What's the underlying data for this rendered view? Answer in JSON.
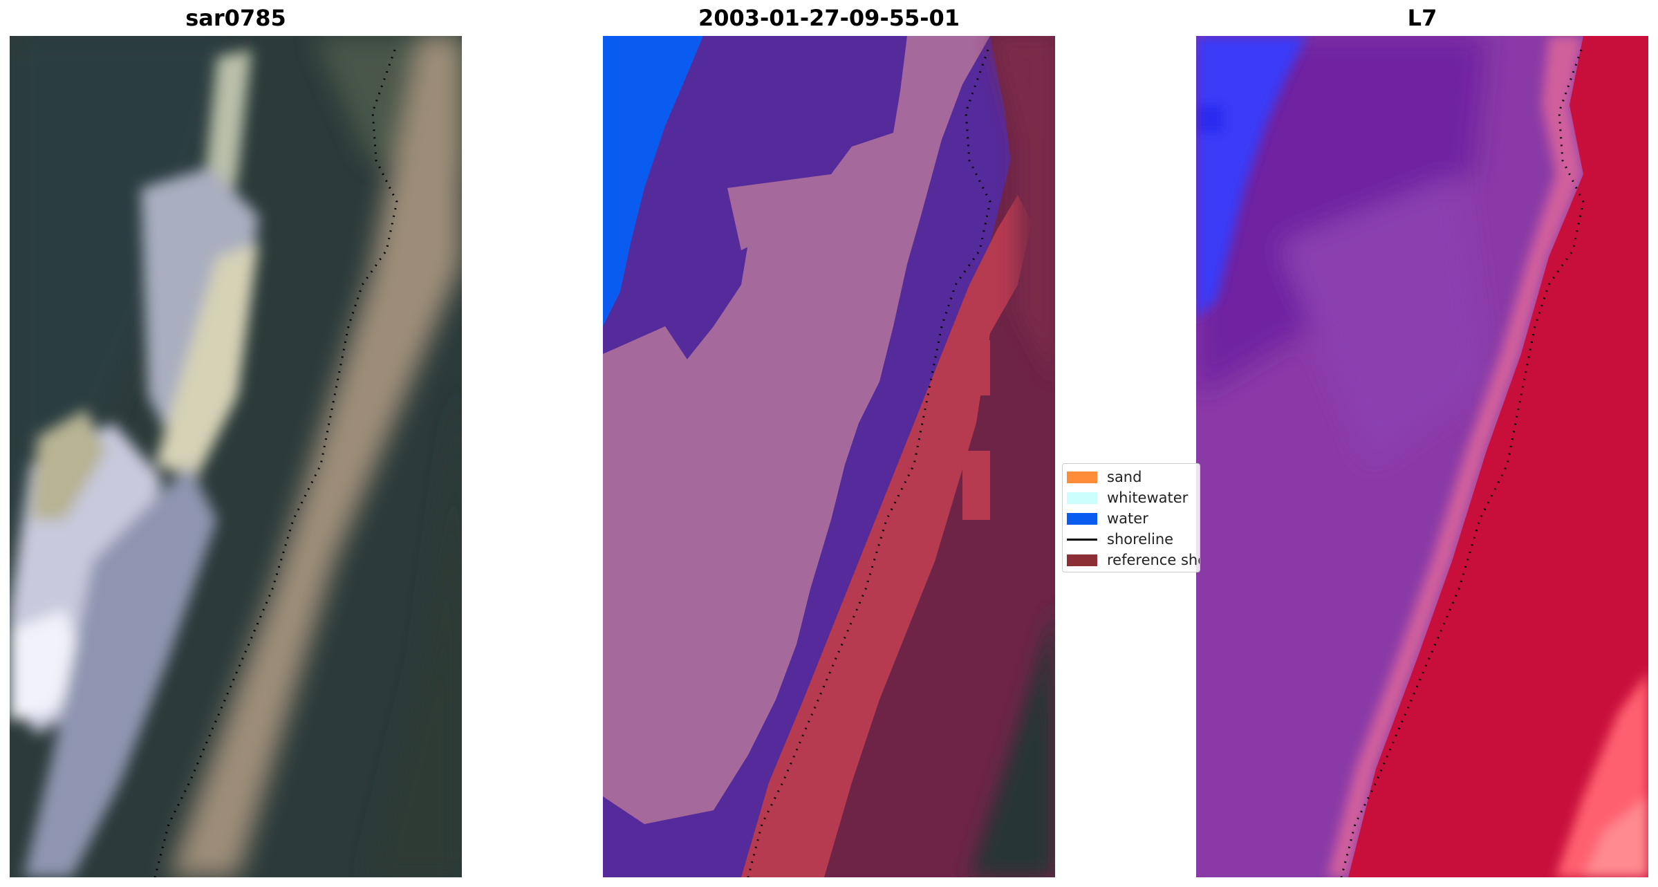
{
  "titles": {
    "left": "sar0785",
    "middle": "2003-01-27-09-55-01",
    "right": "L7"
  },
  "legend": {
    "items": [
      {
        "label": "sand",
        "color": "#ff8c38",
        "kind": "patch"
      },
      {
        "label": "whitewater",
        "color": "#ccfefe",
        "kind": "patch"
      },
      {
        "label": "water",
        "color": "#0a5cf0",
        "kind": "patch"
      },
      {
        "label": "shoreline",
        "color": "#000000",
        "kind": "line"
      },
      {
        "label": "reference shoreline buffer",
        "color": "#8b2e35",
        "kind": "patch"
      }
    ]
  },
  "colors": {
    "rgb_dark": "#2c3a3a",
    "rgb_sand": "#a0907a",
    "rgb_whitewater": "#c8c8d8",
    "class_water_dark": "#552a9b",
    "class_pink": "#a6699c",
    "class_water": "#0a5cf0",
    "class_buffer": "#b63a50",
    "class_land": "#6e2446",
    "class_land_dark": "#283436",
    "fcc_blue": "#3b3bf8",
    "fcc_purple": "#8a3aa6",
    "fcc_red": "#c80f3c",
    "fcc_pink": "#ff6070",
    "shoreline": "#000000"
  }
}
